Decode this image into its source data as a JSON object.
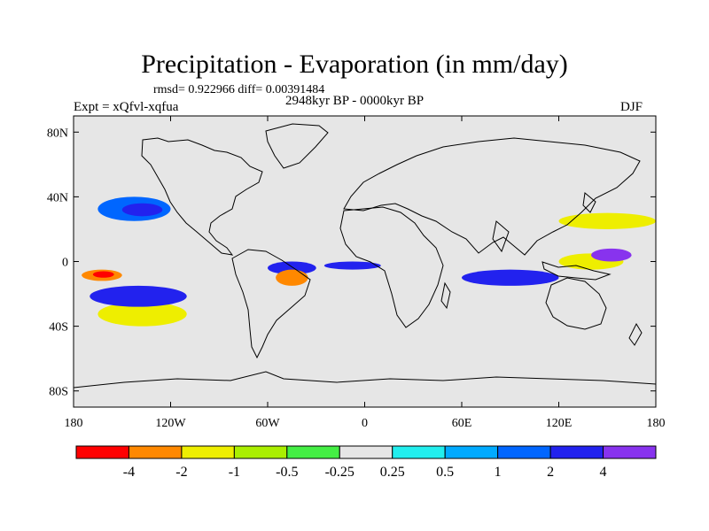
{
  "figure": {
    "title": "Precipitation - Evaporation (in mm/day)",
    "stats": "rmsd= 0.922966 diff= 0.00391484",
    "experiment": "Expt = xQfvl-xqfua",
    "period": "2948kyr BP - 0000kyr BP",
    "season": "DJF"
  },
  "map": {
    "projection": "cylindrical-equidistant",
    "lon_range": [
      -180,
      180
    ],
    "lat_range": [
      -90,
      90
    ],
    "x_ticks": [
      {
        "value": -180,
        "label": "180"
      },
      {
        "value": -120,
        "label": "120W"
      },
      {
        "value": -60,
        "label": "60W"
      },
      {
        "value": 0,
        "label": "0"
      },
      {
        "value": 60,
        "label": "60E"
      },
      {
        "value": 120,
        "label": "120E"
      },
      {
        "value": 180,
        "label": "180"
      }
    ],
    "y_ticks": [
      {
        "value": 80,
        "label": "80N"
      },
      {
        "value": 40,
        "label": "40N"
      },
      {
        "value": 0,
        "label": "0"
      },
      {
        "value": -40,
        "label": "40S"
      },
      {
        "value": -80,
        "label": "80S"
      }
    ],
    "background_color": "#e6e6e6",
    "coastline_color": "#000000",
    "regions": [
      {
        "level": "-4 to -2",
        "color": "#ff8800",
        "lon": [
          -175,
          -150
        ],
        "lat": [
          -12,
          -5
        ]
      },
      {
        "level": "below -4",
        "color": "#ff0000",
        "lon": [
          -168,
          -155
        ],
        "lat": [
          -10,
          -6
        ]
      },
      {
        "level": "-2 to -1",
        "color": "#eeee00",
        "lon": [
          -165,
          -110
        ],
        "lat": [
          -40,
          -25
        ]
      },
      {
        "level": "2 to 4",
        "color": "#2222ee",
        "lon": [
          -170,
          -110
        ],
        "lat": [
          -28,
          -15
        ]
      },
      {
        "level": "1 to 2",
        "color": "#0066ff",
        "lon": [
          -165,
          -120
        ],
        "lat": [
          25,
          40
        ]
      },
      {
        "level": "2 to 4",
        "color": "#2222ee",
        "lon": [
          -150,
          -125
        ],
        "lat": [
          28,
          36
        ]
      },
      {
        "level": "2 to 4",
        "color": "#2222ee",
        "lon": [
          -60,
          -30
        ],
        "lat": [
          -8,
          0
        ]
      },
      {
        "level": "-4 to -2",
        "color": "#ff8800",
        "lon": [
          -55,
          -35
        ],
        "lat": [
          -15,
          -5
        ]
      },
      {
        "level": "2 to 4",
        "color": "#2222ee",
        "lon": [
          -25,
          10
        ],
        "lat": [
          -5,
          0
        ]
      },
      {
        "level": "2 to 4",
        "color": "#2222ee",
        "lon": [
          60,
          120
        ],
        "lat": [
          -15,
          -5
        ]
      },
      {
        "level": "-2 to -1",
        "color": "#eeee00",
        "lon": [
          120,
          160
        ],
        "lat": [
          -5,
          5
        ]
      },
      {
        "level": "above 4",
        "color": "#8833ee",
        "lon": [
          140,
          165
        ],
        "lat": [
          0,
          8
        ]
      },
      {
        "level": "-2 to -1",
        "color": "#eeee00",
        "lon": [
          120,
          180
        ],
        "lat": [
          20,
          30
        ]
      }
    ]
  },
  "colorbar": {
    "colors": [
      "#ff0000",
      "#ff8800",
      "#eeee00",
      "#aaee00",
      "#44ee44",
      "#e6e6e6",
      "#22eeee",
      "#00aaff",
      "#0066ff",
      "#2222ee",
      "#8833ee"
    ],
    "labels": [
      "-4",
      "-2",
      "-1",
      "-0.5",
      "-0.25",
      "0.25",
      "0.5",
      "1",
      "2",
      "4"
    ]
  }
}
